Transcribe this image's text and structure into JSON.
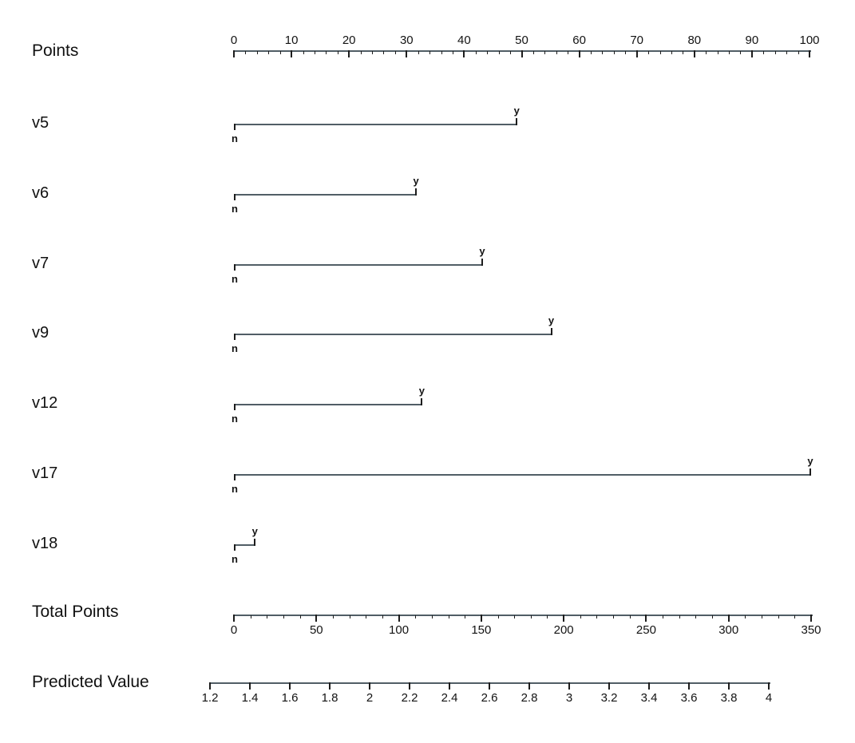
{
  "chart_data": {
    "type": "nomogram",
    "title": "",
    "colors": {
      "line": "#515e66",
      "tick": "#1d1d1d",
      "text": "#111111",
      "background": "#ffffff"
    },
    "points_axis": {
      "label": "Points",
      "min": 0,
      "max": 100,
      "major_step": 10,
      "minor_step": 2,
      "tick_labels": [
        "0",
        "10",
        "20",
        "30",
        "40",
        "50",
        "60",
        "70",
        "80",
        "90",
        "100"
      ]
    },
    "variables": [
      {
        "name": "v5",
        "low_label": "n",
        "high_label": "y",
        "low_points": 0,
        "high_points": 49
      },
      {
        "name": "v6",
        "low_label": "n",
        "high_label": "y",
        "low_points": 0,
        "high_points": 31.5
      },
      {
        "name": "v7",
        "low_label": "n",
        "high_label": "y",
        "low_points": 0,
        "high_points": 43
      },
      {
        "name": "v9",
        "low_label": "n",
        "high_label": "y",
        "low_points": 0,
        "high_points": 55
      },
      {
        "name": "v12",
        "low_label": "n",
        "high_label": "y",
        "low_points": 0,
        "high_points": 32.5
      },
      {
        "name": "v17",
        "low_label": "n",
        "high_label": "y",
        "low_points": 0,
        "high_points": 100
      },
      {
        "name": "v18",
        "low_label": "n",
        "high_label": "y",
        "low_points": 0,
        "high_points": 3.5
      }
    ],
    "total_points_axis": {
      "label": "Total Points",
      "min": 0,
      "max": 350,
      "major_step": 50,
      "minor_step": 10,
      "tick_labels": [
        "0",
        "50",
        "100",
        "150",
        "200",
        "250",
        "300",
        "350"
      ]
    },
    "predicted_value_axis": {
      "label": "Predicted Value",
      "min": 1.2,
      "max": 4,
      "step": 0.2,
      "tick_labels": [
        "1.2",
        "1.4",
        "1.6",
        "1.8",
        "2",
        "2.2",
        "2.4",
        "2.6",
        "2.8",
        "3",
        "3.2",
        "3.4",
        "3.6",
        "3.8",
        "4"
      ]
    }
  }
}
